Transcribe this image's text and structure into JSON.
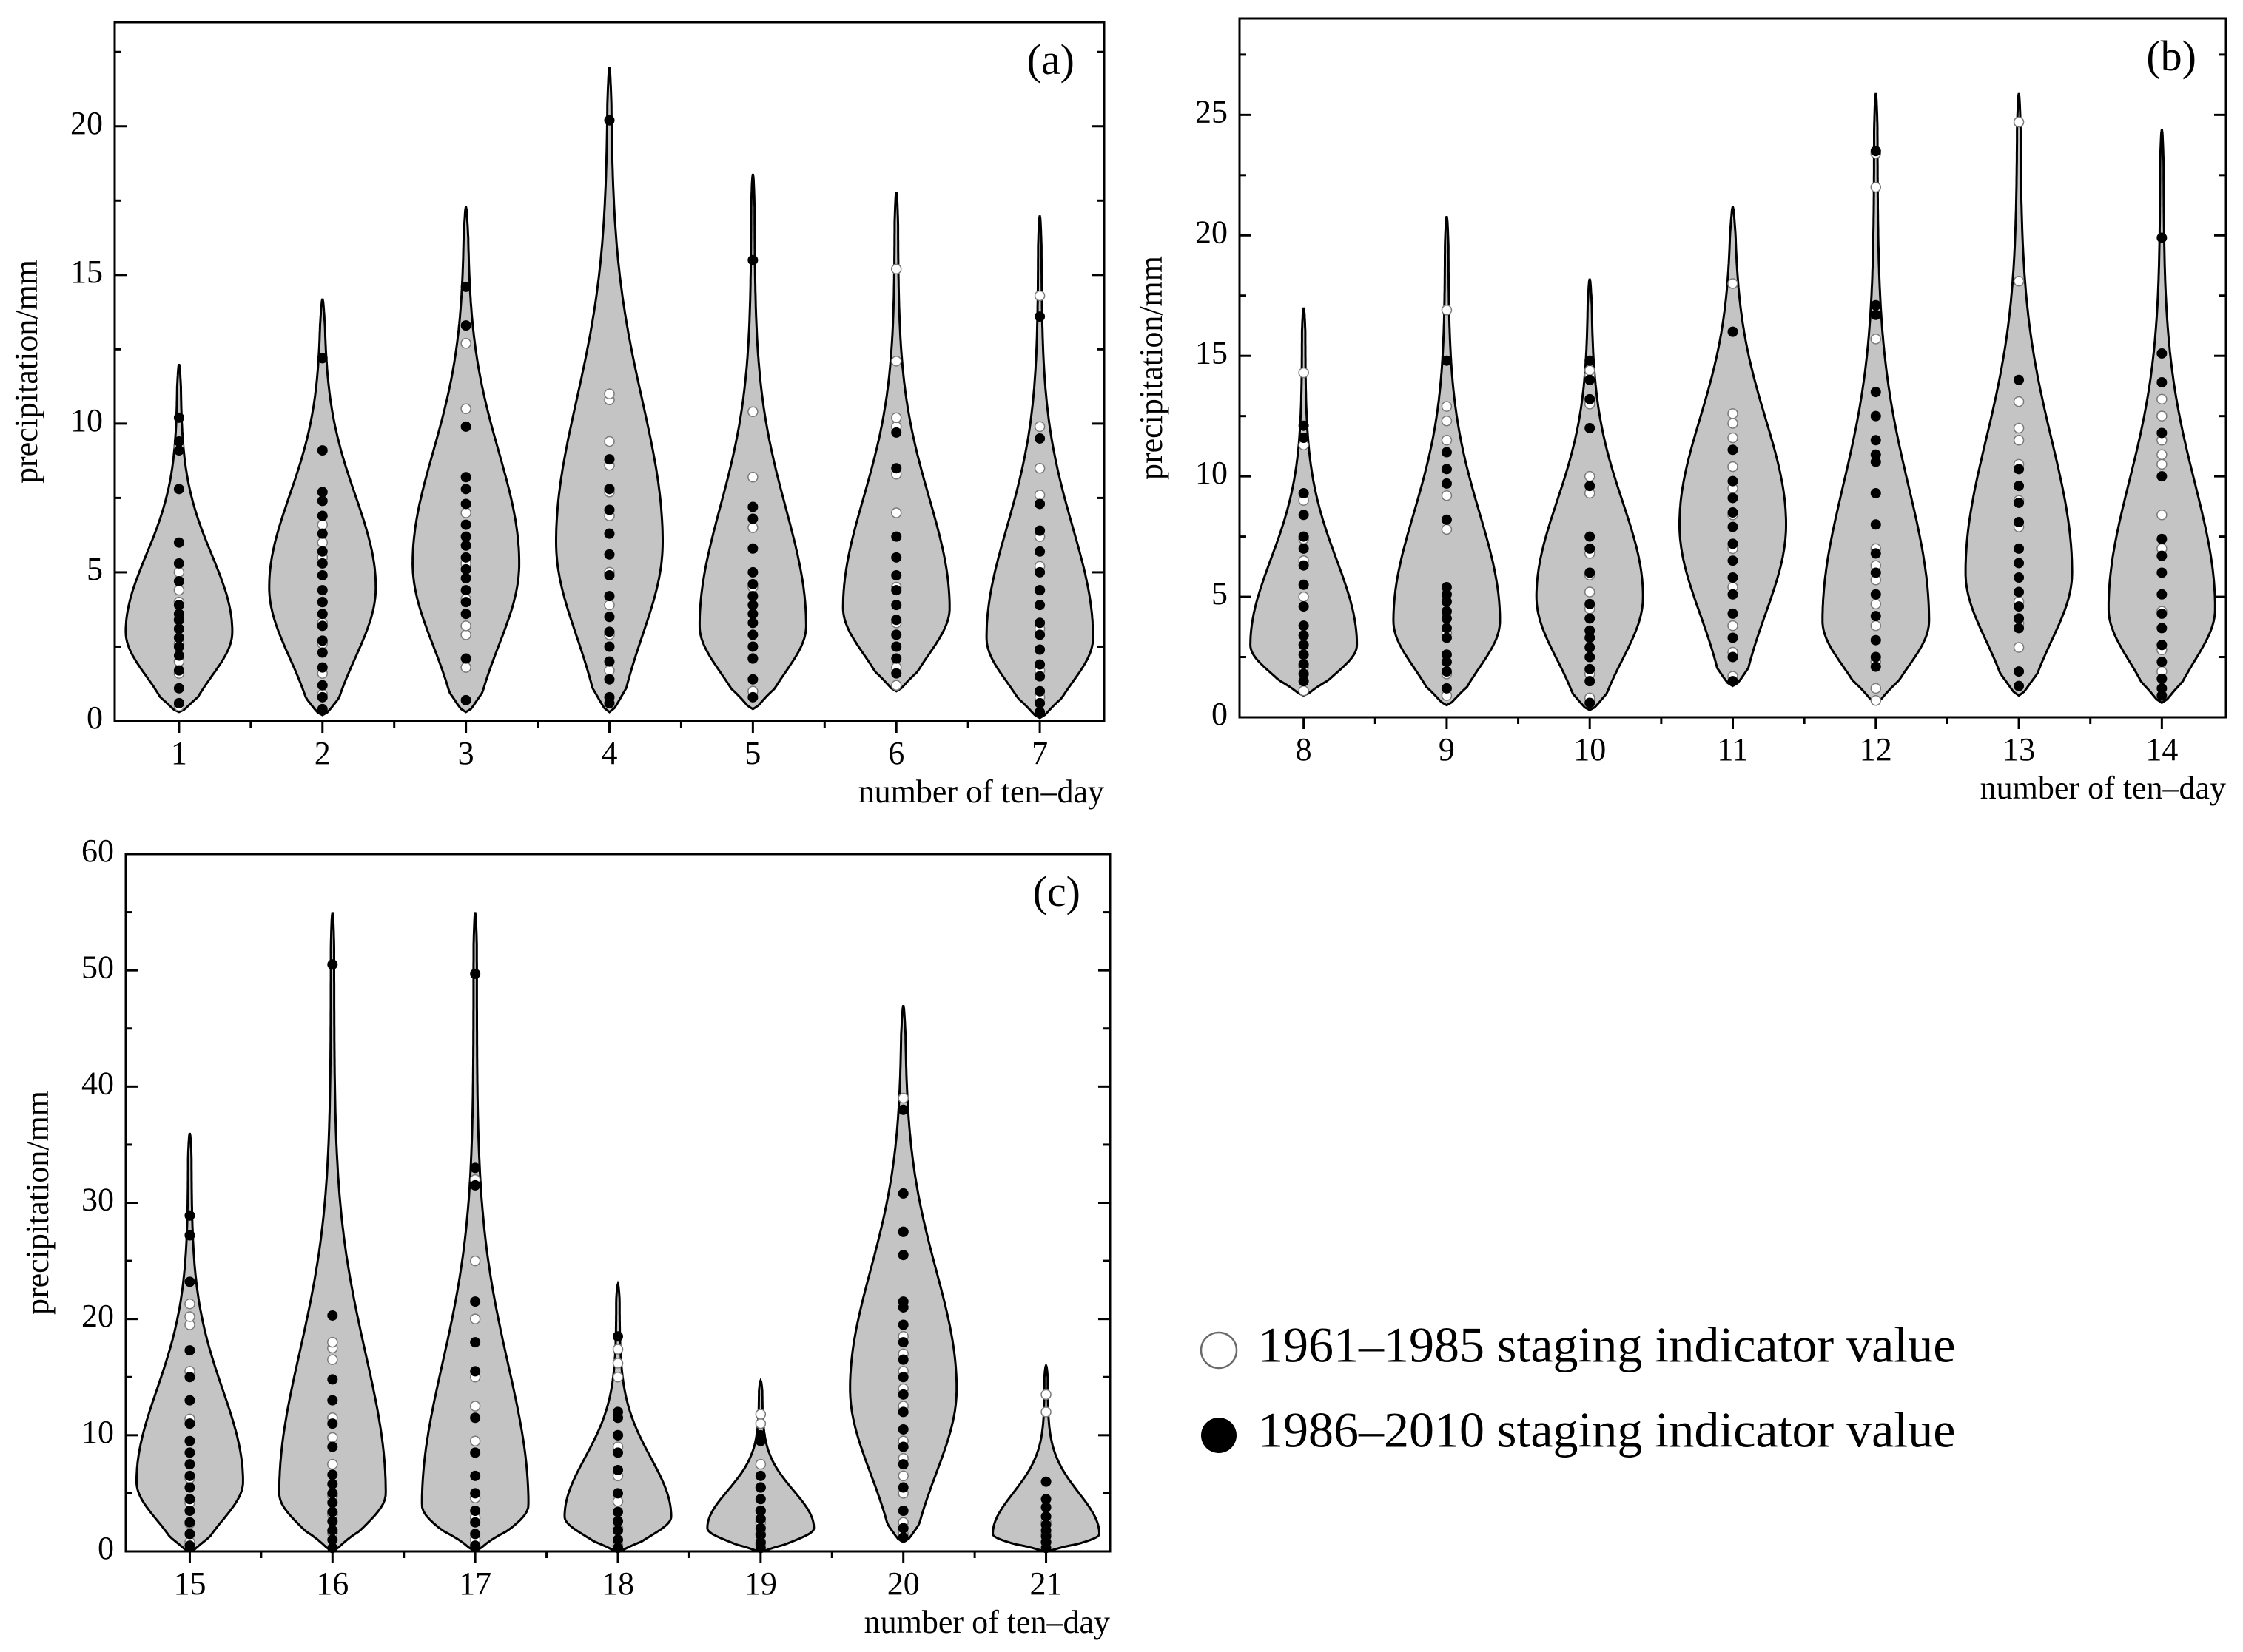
{
  "chart_data": [
    {
      "type": "violin",
      "panel_label": "(a)",
      "ylabel": "precipitation/mm",
      "xlabel": "number of ten–day",
      "ylim": [
        0,
        23.5
      ],
      "yticks": [
        0,
        5,
        10,
        15,
        20
      ],
      "categories": [
        "1",
        "2",
        "3",
        "4",
        "5",
        "6",
        "7"
      ],
      "violins": [
        {
          "min": 0.3,
          "max": 12.0,
          "mode": 3.0,
          "scale": 1.0
        },
        {
          "min": 0.2,
          "max": 14.2,
          "mode": 4.5,
          "scale": 1.0
        },
        {
          "min": 0.3,
          "max": 17.3,
          "mode": 5.3,
          "scale": 1.0
        },
        {
          "min": 0.3,
          "max": 22.0,
          "mode": 6.0,
          "scale": 1.0
        },
        {
          "min": 0.4,
          "max": 18.4,
          "mode": 3.2,
          "scale": 1.0
        },
        {
          "min": 1.0,
          "max": 17.8,
          "mode": 3.8,
          "scale": 1.0
        },
        {
          "min": 0.1,
          "max": 17.0,
          "mode": 2.8,
          "scale": 1.0
        }
      ],
      "points_1961_1985": [
        [
          0.5,
          1.6,
          2.0,
          2.6,
          3.4,
          4.0,
          4.4,
          5.0,
          9.2
        ],
        [
          0.9,
          1.6,
          2.6,
          3.3,
          4.0,
          5.5,
          6.0,
          6.6
        ],
        [
          1.8,
          2.9,
          3.2,
          4.1,
          5.3,
          7.0,
          10.5,
          12.7
        ],
        [
          1.7,
          2.9,
          3.9,
          5.0,
          6.9,
          7.7,
          8.6,
          9.4,
          10.8,
          11.0
        ],
        [
          1.0,
          2.1,
          4.5,
          6.5,
          8.2,
          10.4
        ],
        [
          1.2,
          1.8,
          3.3,
          4.5,
          7.0,
          8.3,
          9.9,
          10.2,
          12.1,
          15.2
        ],
        [
          0.8,
          1.7,
          3.1,
          4.4,
          5.2,
          6.2,
          7.6,
          8.5,
          9.9,
          14.3
        ]
      ],
      "points_1986_2010": [
        [
          0.6,
          1.1,
          1.7,
          2.2,
          2.5,
          2.8,
          3.1,
          3.4,
          3.6,
          3.9,
          4.7,
          5.3,
          6.0,
          7.8,
          9.1,
          9.4,
          10.2
        ],
        [
          0.4,
          0.8,
          1.2,
          1.8,
          2.3,
          2.7,
          3.2,
          3.6,
          4.0,
          4.4,
          4.9,
          5.3,
          5.7,
          6.3,
          6.9,
          7.4,
          7.7,
          9.1,
          12.2
        ],
        [
          0.7,
          2.1,
          3.6,
          4.0,
          4.4,
          4.8,
          5.1,
          5.5,
          5.9,
          6.2,
          6.6,
          7.3,
          7.8,
          8.2,
          9.9,
          13.3,
          14.6
        ],
        [
          0.6,
          0.8,
          1.4,
          2.0,
          2.5,
          3.0,
          3.5,
          4.2,
          4.9,
          5.6,
          6.3,
          7.1,
          7.8,
          8.8,
          20.2
        ],
        [
          0.8,
          1.4,
          2.1,
          2.5,
          2.9,
          3.3,
          3.6,
          3.9,
          4.2,
          4.6,
          5.0,
          5.8,
          6.8,
          7.2,
          15.5
        ],
        [
          1.6,
          2.1,
          2.5,
          2.9,
          3.4,
          3.9,
          4.4,
          4.9,
          5.5,
          6.2,
          8.5,
          9.7
        ],
        [
          0.3,
          0.6,
          1.0,
          1.5,
          1.9,
          2.4,
          2.9,
          3.3,
          3.9,
          4.4,
          5.0,
          5.7,
          6.4,
          7.3,
          9.5,
          13.6
        ]
      ]
    },
    {
      "type": "violin",
      "panel_label": "(b)",
      "ylabel": "precipitation/mm",
      "xlabel": "number of ten–day",
      "ylim": [
        0,
        29.0
      ],
      "yticks": [
        0,
        5,
        10,
        15,
        20,
        25
      ],
      "categories": [
        "8",
        "9",
        "10",
        "11",
        "12",
        "13",
        "14"
      ],
      "violins": [
        {
          "min": 0.9,
          "max": 17.0,
          "mode": 3.0,
          "scale": 1.0
        },
        {
          "min": 0.5,
          "max": 20.8,
          "mode": 4.0,
          "scale": 1.0
        },
        {
          "min": 0.3,
          "max": 18.2,
          "mode": 5.0,
          "scale": 1.0
        },
        {
          "min": 1.3,
          "max": 21.2,
          "mode": 8.0,
          "scale": 1.0
        },
        {
          "min": 0.6,
          "max": 25.9,
          "mode": 4.0,
          "scale": 1.0
        },
        {
          "min": 0.9,
          "max": 25.9,
          "mode": 6.0,
          "scale": 1.0
        },
        {
          "min": 0.6,
          "max": 24.4,
          "mode": 4.5,
          "scale": 1.0
        }
      ],
      "points_1961_1985": [
        [
          1.1,
          2.1,
          5.0,
          6.5,
          7.4,
          9.0,
          11.3,
          14.3
        ],
        [
          0.9,
          1.8,
          3.5,
          7.8,
          9.2,
          11.5,
          12.3,
          12.9,
          16.9
        ],
        [
          0.8,
          1.8,
          4.5,
          5.2,
          5.9,
          6.8,
          9.3,
          10.0,
          13.0,
          14.2,
          14.4
        ],
        [
          1.7,
          2.7,
          3.8,
          5.4,
          7.0,
          8.4,
          9.5,
          10.4,
          11.6,
          12.2,
          12.6,
          18.0
        ],
        [
          0.7,
          1.2,
          2.3,
          3.8,
          4.7,
          5.7,
          6.3,
          7.0,
          15.7,
          22.0,
          23.4
        ],
        [
          2.9,
          3.9,
          4.8,
          7.9,
          9.0,
          10.5,
          11.5,
          12.0,
          13.1,
          18.1,
          24.7
        ],
        [
          1.9,
          2.8,
          4.4,
          7.0,
          8.4,
          10.5,
          10.9,
          11.5,
          12.5,
          13.2
        ]
      ],
      "points_1986_2010": [
        [
          1.5,
          1.8,
          2.2,
          2.6,
          3.0,
          3.4,
          3.8,
          4.6,
          5.5,
          6.3,
          7.0,
          7.5,
          8.4,
          9.3,
          11.6,
          12.1
        ],
        [
          1.2,
          1.9,
          2.3,
          2.6,
          3.3,
          3.7,
          4.1,
          4.4,
          4.8,
          5.1,
          5.4,
          8.2,
          9.7,
          10.3,
          11.0,
          14.8
        ],
        [
          0.6,
          1.5,
          2.0,
          2.5,
          2.9,
          3.3,
          3.6,
          4.1,
          4.7,
          6.0,
          7.0,
          7.5,
          9.6,
          12.0,
          13.2,
          14.0,
          14.8
        ],
        [
          1.5,
          2.5,
          3.3,
          4.3,
          5.1,
          5.8,
          6.5,
          7.2,
          7.9,
          8.5,
          9.1,
          9.8,
          11.1,
          16.0
        ],
        [
          2.1,
          2.5,
          3.2,
          4.2,
          5.1,
          6.0,
          6.8,
          8.0,
          9.3,
          10.6,
          10.9,
          11.5,
          12.5,
          13.5,
          16.7,
          17.1,
          23.5
        ],
        [
          1.3,
          1.9,
          3.7,
          4.1,
          4.6,
          5.2,
          5.8,
          6.4,
          7.0,
          8.1,
          8.9,
          9.6,
          10.3,
          14.0
        ],
        [
          0.9,
          1.2,
          1.6,
          2.3,
          3.0,
          3.7,
          4.3,
          5.1,
          6.0,
          6.7,
          7.4,
          10.0,
          11.8,
          13.9,
          15.1,
          19.9
        ]
      ]
    },
    {
      "type": "violin",
      "panel_label": "(c)",
      "ylabel": "precipitation/mm",
      "xlabel": "number of ten–day",
      "ylim": [
        0,
        60
      ],
      "yticks": [
        0,
        10,
        20,
        30,
        40,
        50,
        60
      ],
      "categories": [
        "15",
        "16",
        "17",
        "18",
        "19",
        "20",
        "21"
      ],
      "violins": [
        {
          "min": 0.0,
          "max": 36.0,
          "mode": 6.0,
          "scale": 1.0
        },
        {
          "min": 0.0,
          "max": 55.0,
          "mode": 5.0,
          "scale": 1.0
        },
        {
          "min": 0.0,
          "max": 55.0,
          "mode": 4.0,
          "scale": 1.0
        },
        {
          "min": 0.0,
          "max": 23.0,
          "mode": 3.0,
          "scale": 1.0
        },
        {
          "min": 0.0,
          "max": 14.7,
          "mode": 2.0,
          "scale": 1.0
        },
        {
          "min": 0.8,
          "max": 47.0,
          "mode": 14.0,
          "scale": 1.0
        },
        {
          "min": 0.0,
          "max": 16.0,
          "mode": 1.5,
          "scale": 1.0
        }
      ],
      "points_1961_1985": [
        [
          0.8,
          2.4,
          4.2,
          6.3,
          11.4,
          15.5,
          19.5,
          20.2,
          21.3
        ],
        [
          1.6,
          3.2,
          4.8,
          7.5,
          9.8,
          11.5,
          16.5,
          17.5,
          18.0
        ],
        [
          1.0,
          2.9,
          4.6,
          9.5,
          12.5,
          15.0,
          20.0,
          25.0,
          32.0
        ],
        [
          0.5,
          2.0,
          4.3,
          6.5,
          9.0,
          10.0,
          15.0,
          16.2,
          17.4
        ],
        [
          0.6,
          1.5,
          2.5,
          3.5,
          5.5,
          7.5,
          11.0,
          11.8
        ],
        [
          1.5,
          2.5,
          5.0,
          6.5,
          8.0,
          9.5,
          12.5,
          14.0,
          15.5,
          17.0,
          18.5,
          27.5,
          39.0
        ],
        [
          0.8,
          1.5,
          2.5,
          12.0,
          13.5
        ]
      ],
      "points_1986_2010": [
        [
          0.5,
          1.5,
          2.5,
          3.5,
          4.5,
          5.5,
          6.5,
          7.5,
          8.5,
          9.5,
          11.0,
          13.0,
          15.0,
          17.3,
          23.2,
          27.2,
          28.9
        ],
        [
          0.3,
          1.0,
          1.8,
          2.6,
          3.4,
          4.2,
          5.0,
          5.8,
          6.6,
          9.0,
          11.0,
          13.0,
          14.8,
          20.3,
          50.5
        ],
        [
          0.5,
          1.5,
          2.5,
          3.5,
          5.0,
          6.5,
          8.5,
          11.5,
          15.5,
          18.0,
          21.5,
          31.5,
          33.0,
          49.7
        ],
        [
          0.3,
          1.0,
          1.8,
          2.6,
          3.4,
          5.0,
          7.0,
          8.5,
          10.0,
          11.5,
          12.0,
          18.5
        ],
        [
          0.3,
          0.8,
          1.4,
          2.0,
          2.8,
          3.5,
          4.5,
          5.5,
          6.5,
          9.5,
          10.0
        ],
        [
          1.2,
          2.0,
          3.5,
          5.5,
          7.5,
          9.0,
          10.5,
          12.0,
          13.5,
          15.0,
          16.5,
          18.0,
          19.5,
          21.0,
          21.5,
          25.5,
          27.5,
          30.8,
          38.0
        ],
        [
          0.3,
          0.8,
          1.3,
          1.8,
          2.3,
          3.0,
          3.8,
          4.5,
          6.0
        ]
      ]
    }
  ],
  "legend": {
    "early_label": "1961–1985 staging indicator value",
    "late_label": "1986–2010 staging indicator value"
  },
  "colors": {
    "violin_fill": "#c4c4c4",
    "early_marker": "#ffffff",
    "late_marker": "#000000"
  }
}
